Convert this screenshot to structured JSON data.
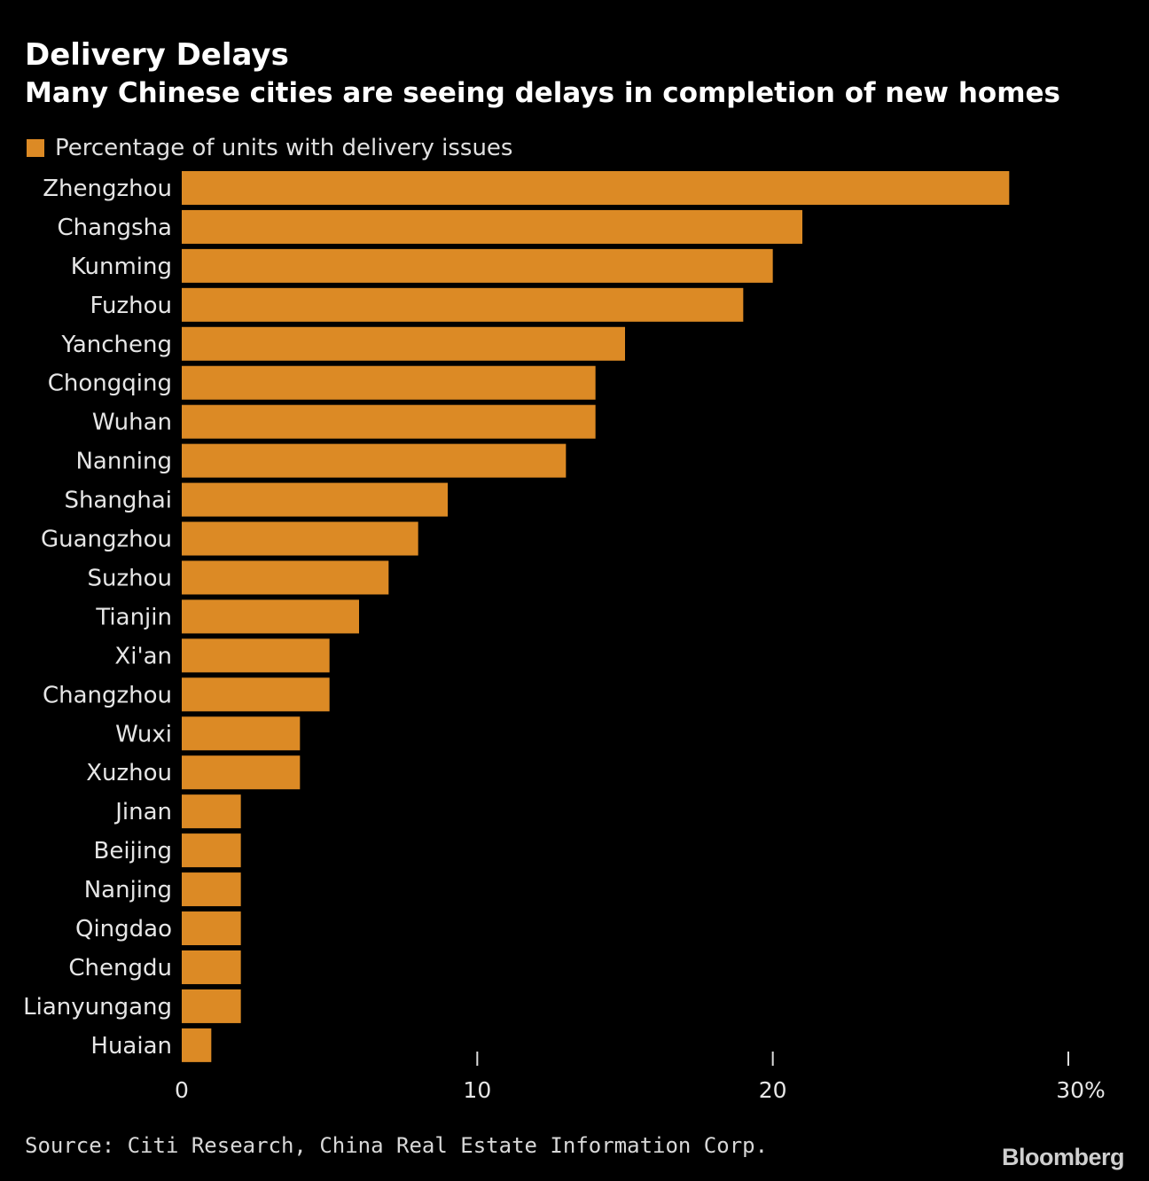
{
  "header": {
    "title": "Delivery Delays",
    "subtitle": "Many Chinese cities are seeing delays in completion of new homes"
  },
  "legend": {
    "label": "Percentage of units with delivery issues",
    "color": "#dc8a25"
  },
  "footer": {
    "source": "Source: Citi Research, China Real Estate Information Corp.",
    "brand": "Bloomberg"
  },
  "chart_data": {
    "type": "bar",
    "orientation": "horizontal",
    "title": "Delivery Delays",
    "subtitle": "Many Chinese cities are seeing delays in completion of new homes",
    "categories": [
      "Zhengzhou",
      "Changsha",
      "Kunming",
      "Fuzhou",
      "Yancheng",
      "Chongqing",
      "Wuhan",
      "Nanning",
      "Shanghai",
      "Guangzhou",
      "Suzhou",
      "Tianjin",
      "Xi'an",
      "Changzhou",
      "Wuxi",
      "Xuzhou",
      "Jinan",
      "Beijing",
      "Nanjing",
      "Qingdao",
      "Chengdu",
      "Lianyungang",
      "Huaian"
    ],
    "series": [
      {
        "name": "Percentage of units with delivery issues",
        "values": [
          28,
          21,
          20,
          19,
          15,
          14,
          14,
          13,
          9,
          8,
          7,
          6,
          5,
          5,
          4,
          4,
          2,
          2,
          2,
          2,
          2,
          2,
          1
        ]
      }
    ],
    "xlim": [
      0,
      30
    ],
    "xticks": [
      0,
      10,
      20,
      30
    ],
    "xtick_labels": [
      "0",
      "10",
      "20",
      "30%"
    ],
    "bar_color": "#dc8a25",
    "background": "#000000",
    "grid": false,
    "legend_position": "top-left"
  }
}
